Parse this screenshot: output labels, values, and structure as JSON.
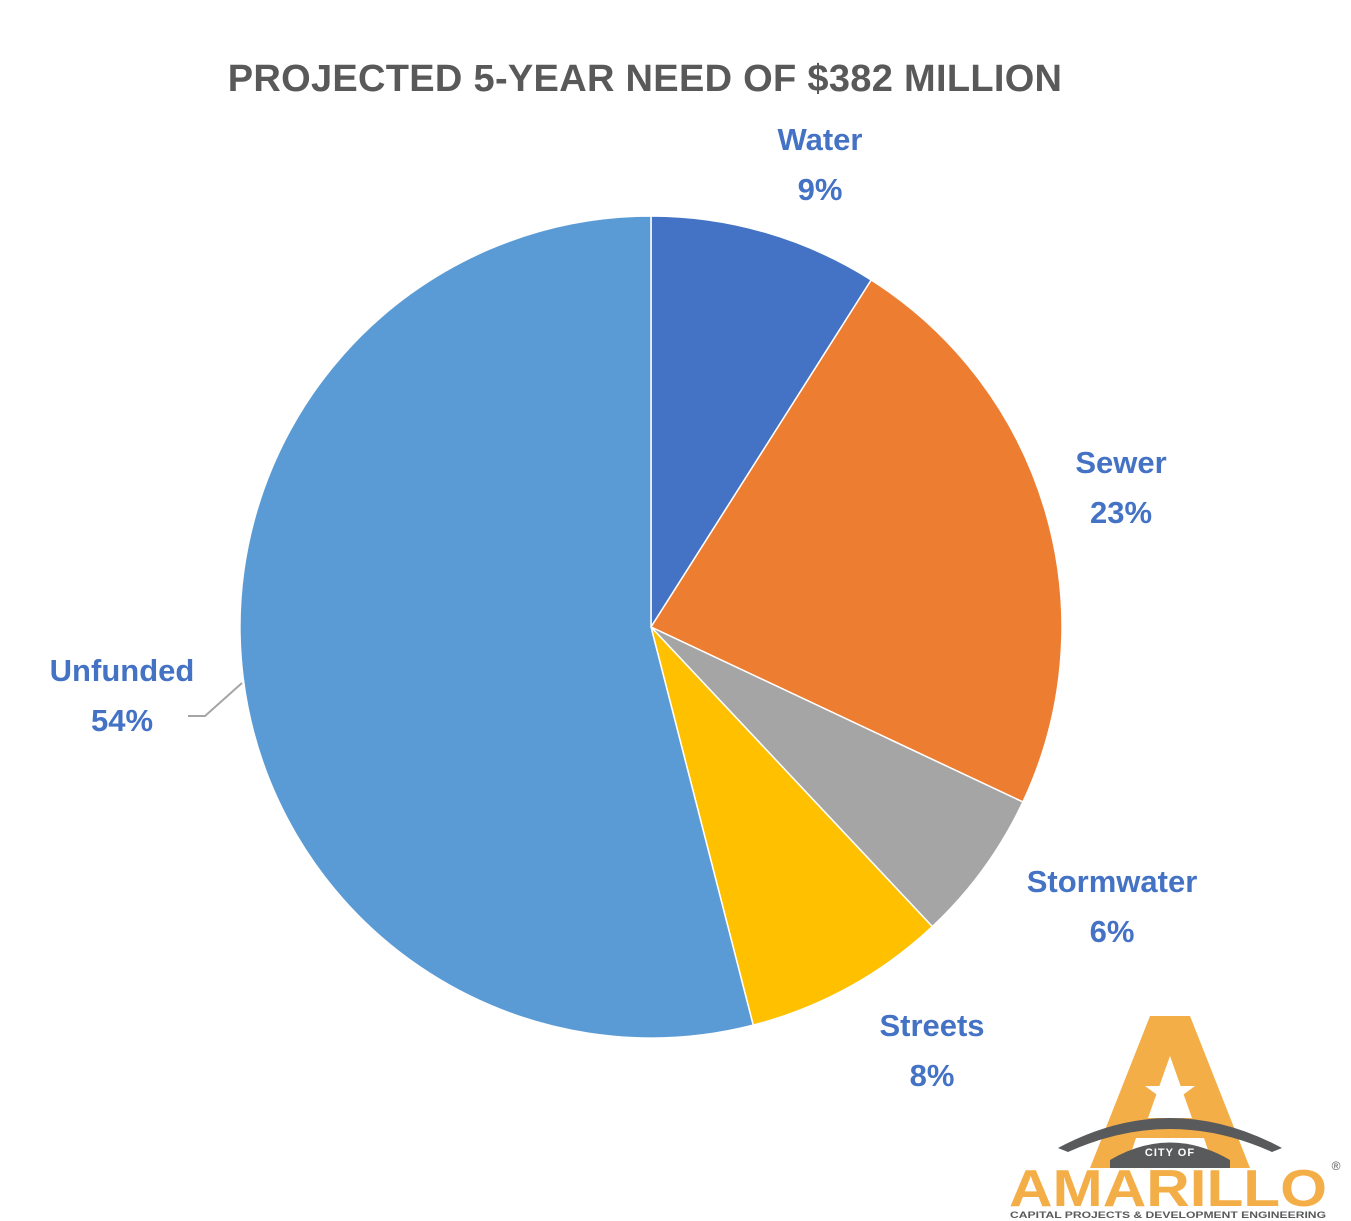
{
  "chart_data": {
    "type": "pie",
    "title": "PROJECTED 5-YEAR NEED OF $382 MILLION",
    "categories": [
      "Water",
      "Sewer",
      "Stormwater",
      "Streets",
      "Unfunded"
    ],
    "values": [
      9,
      23,
      6,
      8,
      54
    ],
    "value_labels": [
      "9%",
      "23%",
      "6%",
      "8%",
      "54%"
    ],
    "colors": [
      "#4472c4",
      "#ed7d31",
      "#a5a5a5",
      "#ffc000",
      "#5b9bd5"
    ],
    "label_color": "#4472c4",
    "start_angle": "12 o'clock, clockwise"
  },
  "logo": {
    "city_of": "CITY OF",
    "name": "AMARILLO",
    "registered": "®",
    "subtitle": "CAPITAL PROJECTS & DEVELOPMENT ENGINEERING",
    "colors": {
      "gold": "#f4ae48",
      "gray": "#595a5c"
    }
  }
}
